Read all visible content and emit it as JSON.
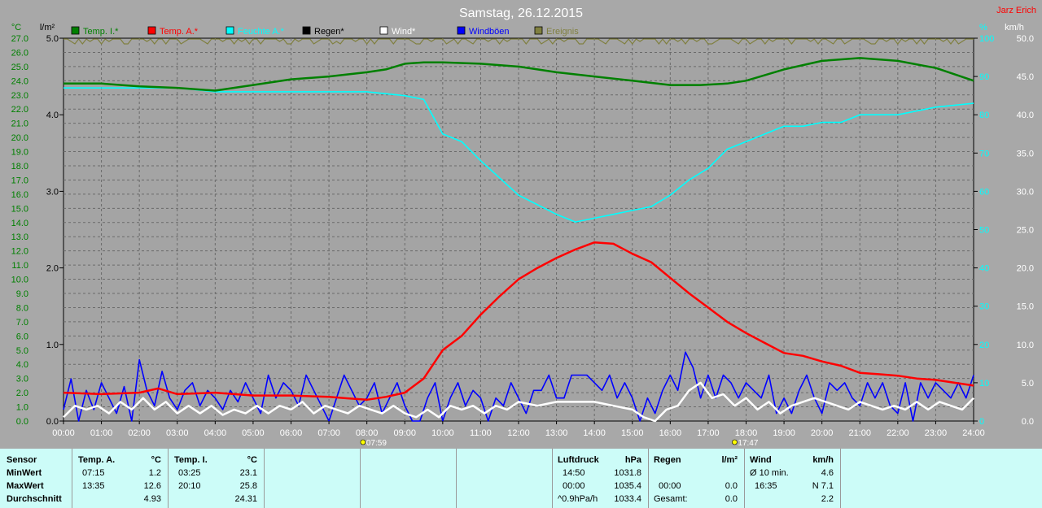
{
  "chart_data": {
    "type": "line",
    "title": "Samstag, 26.12.2015",
    "author": "Jarz Erich",
    "left_units": [
      "°C",
      "l/m²"
    ],
    "right_units": [
      "%",
      "km/h"
    ],
    "temp_ticks": [
      "27.0",
      "26.0",
      "25.0",
      "24.0",
      "23.0",
      "22.0",
      "21.0",
      "20.0",
      "19.0",
      "18.0",
      "17.0",
      "16.0",
      "15.0",
      "14.0",
      "13.0",
      "12.0",
      "11.0",
      "10.0",
      "9.0",
      "8.0",
      "7.0",
      "6.0",
      "5.0",
      "4.0",
      "3.0",
      "2.0",
      "1.0",
      "0.0"
    ],
    "rain_ticks": [
      "5.0",
      "4.0",
      "3.0",
      "2.0",
      "1.0",
      "0.0"
    ],
    "humidity_ticks": [
      "100",
      "90",
      "80",
      "70",
      "60",
      "50",
      "40",
      "30",
      "20",
      "10",
      "0"
    ],
    "wind_ticks": [
      "50.0",
      "45.0",
      "40.0",
      "35.0",
      "30.0",
      "25.0",
      "20.0",
      "15.0",
      "10.0",
      "5.0",
      "0.0"
    ],
    "x_ticks": [
      "00:00",
      "01:00",
      "02:00",
      "03:00",
      "04:00",
      "05:00",
      "06:00",
      "07:00",
      "08:00",
      "09:00",
      "10:00",
      "11:00",
      "12:00",
      "13:00",
      "14:00",
      "15:00",
      "16:00",
      "17:00",
      "18:00",
      "19:00",
      "20:00",
      "21:00",
      "22:00",
      "23:00",
      "24:00"
    ],
    "sunrise": "07:59",
    "sunset": "17:47",
    "legend": [
      {
        "name": "Temp. I.*",
        "color": "#008000"
      },
      {
        "name": "Temp. A.*",
        "color": "#ff0000"
      },
      {
        "name": "Feuchte A.*",
        "color": "#00ffff"
      },
      {
        "name": "Regen*",
        "color": "#000000"
      },
      {
        "name": "Wind*",
        "color": "#ffffff"
      },
      {
        "name": "Windböen",
        "color": "#0000ff"
      },
      {
        "name": "Ereignis",
        "color": "#808040"
      }
    ],
    "series": [
      {
        "name": "Temp. I.*",
        "color": "#008000",
        "axis": "temp",
        "x": [
          0,
          1,
          2,
          3,
          4,
          5,
          6,
          7,
          8,
          8.5,
          9,
          9.5,
          10,
          11,
          12,
          13,
          14,
          15,
          16,
          16.8,
          17.5,
          18,
          19,
          20,
          21,
          22,
          23,
          24
        ],
        "y": [
          23.8,
          23.8,
          23.6,
          23.5,
          23.3,
          23.7,
          24.1,
          24.3,
          24.6,
          24.8,
          25.2,
          25.3,
          25.3,
          25.2,
          25.0,
          24.6,
          24.3,
          24.0,
          23.7,
          23.7,
          23.8,
          24.0,
          24.8,
          25.4,
          25.6,
          25.4,
          24.9,
          24.0
        ]
      },
      {
        "name": "Temp. A.*",
        "color": "#ff0000",
        "axis": "temp",
        "x": [
          0,
          1,
          2,
          2.5,
          3,
          4,
          5,
          6,
          7,
          7.5,
          8,
          8.5,
          9,
          9.5,
          10,
          10.5,
          11,
          11.5,
          12,
          12.5,
          13,
          13.5,
          14,
          14.5,
          15,
          15.5,
          16,
          16.5,
          17,
          17.5,
          18,
          18.5,
          19,
          19.5,
          20,
          20.5,
          21,
          21.5,
          22,
          22.5,
          23,
          23.5,
          24
        ],
        "y": [
          2.0,
          1.9,
          2.0,
          2.3,
          1.9,
          2.0,
          1.8,
          1.8,
          1.7,
          1.6,
          1.5,
          1.7,
          2.0,
          3.0,
          5.0,
          6.0,
          7.5,
          8.8,
          10.0,
          10.8,
          11.5,
          12.1,
          12.6,
          12.5,
          11.8,
          11.2,
          10.1,
          9.0,
          8.0,
          7.0,
          6.2,
          5.5,
          4.8,
          4.6,
          4.2,
          3.9,
          3.4,
          3.3,
          3.2,
          3.0,
          2.9,
          2.7,
          2.5
        ]
      },
      {
        "name": "Feuchte A.*",
        "color": "#00ffff",
        "axis": "humidity",
        "x": [
          0,
          1,
          2,
          3,
          4,
          5,
          6,
          7,
          8,
          9,
          9.5,
          10,
          10.5,
          11,
          12,
          13,
          13.5,
          14,
          14.5,
          15,
          15.5,
          16,
          16.5,
          17,
          17.5,
          18,
          18.5,
          19,
          19.5,
          20,
          20.5,
          21,
          22,
          23,
          24
        ],
        "y": [
          87,
          87,
          87,
          87,
          86,
          86,
          86,
          86,
          86,
          85,
          84,
          75,
          73,
          68,
          59,
          54,
          52,
          53,
          54,
          55,
          56,
          59,
          63,
          66,
          71,
          73,
          75,
          77,
          77,
          78,
          78,
          80,
          80,
          82,
          83
        ]
      },
      {
        "name": "Windböen",
        "color": "#0000ff",
        "axis": "wind",
        "x": [
          0,
          0.2,
          0.4,
          0.6,
          0.8,
          1.0,
          1.2,
          1.4,
          1.6,
          1.8,
          2.0,
          2.2,
          2.4,
          2.6,
          2.8,
          3.0,
          3.2,
          3.4,
          3.6,
          3.8,
          4.0,
          4.2,
          4.4,
          4.6,
          4.8,
          5.0,
          5.2,
          5.4,
          5.6,
          5.8,
          6.0,
          6.2,
          6.4,
          6.6,
          6.8,
          7.0,
          7.2,
          7.4,
          7.6,
          7.8,
          8.0,
          8.2,
          8.4,
          8.6,
          8.8,
          9.0,
          9.2,
          9.4,
          9.6,
          9.8,
          10.0,
          10.2,
          10.4,
          10.6,
          10.8,
          11.0,
          11.2,
          11.4,
          11.6,
          11.8,
          12.0,
          12.2,
          12.4,
          12.6,
          12.8,
          13.0,
          13.2,
          13.4,
          13.6,
          13.8,
          14.0,
          14.2,
          14.4,
          14.6,
          14.8,
          15.0,
          15.2,
          15.4,
          15.6,
          15.8,
          16.0,
          16.2,
          16.4,
          16.6,
          16.8,
          17.0,
          17.2,
          17.4,
          17.6,
          17.8,
          18.0,
          18.2,
          18.4,
          18.6,
          18.8,
          19.0,
          19.2,
          19.4,
          19.6,
          19.8,
          20.0,
          20.2,
          20.4,
          20.6,
          20.8,
          21.0,
          21.2,
          21.4,
          21.6,
          21.8,
          22.0,
          22.2,
          22.4,
          22.6,
          22.8,
          23.0,
          23.2,
          23.4,
          23.6,
          23.8,
          24.0
        ],
        "y": [
          1.5,
          5.5,
          0,
          4,
          1.5,
          5,
          3,
          1,
          4.5,
          0,
          8,
          4,
          2,
          6.5,
          3,
          1.5,
          4,
          5,
          2,
          4,
          3,
          1.5,
          4,
          2.5,
          5,
          3,
          1,
          6,
          3,
          5,
          4,
          2,
          6,
          4,
          2,
          0,
          3,
          6,
          4,
          2,
          3,
          5,
          1,
          3,
          5,
          2,
          0,
          0,
          3,
          5,
          0,
          3,
          5,
          2,
          4,
          3,
          0,
          3,
          2,
          5,
          3,
          1,
          4,
          4,
          6,
          3,
          3,
          6,
          6,
          6,
          5,
          4,
          6,
          3,
          5,
          3,
          0,
          3,
          1,
          4,
          6,
          4,
          9,
          7,
          3,
          6,
          3,
          6,
          5,
          3,
          5,
          4,
          3,
          6,
          1,
          3,
          1,
          4,
          6,
          3,
          1,
          5,
          4,
          5,
          3,
          2,
          5,
          3,
          5,
          2,
          1,
          5,
          0,
          5,
          3,
          5,
          4,
          3,
          5,
          3,
          6
        ]
      },
      {
        "name": "Wind*",
        "color": "#ffffff",
        "axis": "wind",
        "x": [
          0,
          0.3,
          0.6,
          0.9,
          1.2,
          1.5,
          1.8,
          2.1,
          2.4,
          2.7,
          3.0,
          3.3,
          3.6,
          3.9,
          4.2,
          4.5,
          4.8,
          5.1,
          5.4,
          5.7,
          6.0,
          6.3,
          6.6,
          6.9,
          7.2,
          7.5,
          7.8,
          8.1,
          8.4,
          8.7,
          9.0,
          9.3,
          9.6,
          9.9,
          10.2,
          10.5,
          10.8,
          11.1,
          11.4,
          11.7,
          12.0,
          12.5,
          13.0,
          13.5,
          14.0,
          14.5,
          15.0,
          15.3,
          15.6,
          15.9,
          16.2,
          16.5,
          16.8,
          17.1,
          17.4,
          17.7,
          18.0,
          18.3,
          18.6,
          18.9,
          19.2,
          19.5,
          19.8,
          20.1,
          20.4,
          20.7,
          21.0,
          21.3,
          21.6,
          21.9,
          22.2,
          22.5,
          22.8,
          23.1,
          23.4,
          23.7,
          24.0
        ],
        "y": [
          0.5,
          2,
          1.5,
          2,
          1,
          2.5,
          1.5,
          3,
          1.5,
          2.5,
          1,
          2,
          1,
          2,
          0.8,
          1.5,
          1,
          2,
          1,
          2,
          1.5,
          2.5,
          1,
          2,
          1.5,
          1,
          2,
          1.5,
          1,
          2,
          1,
          0.5,
          1.5,
          0.5,
          2,
          1.5,
          2,
          1,
          2,
          1.5,
          2.5,
          2,
          2.5,
          2.5,
          2.5,
          2,
          1.5,
          0.5,
          0,
          1.5,
          2,
          4,
          5,
          3,
          3.5,
          2,
          3,
          1.5,
          2.5,
          1,
          2,
          2.5,
          3,
          2.5,
          2,
          1.5,
          2.5,
          2,
          1.5,
          2,
          1.5,
          2.5,
          1.5,
          2.5,
          2,
          1.5,
          3
        ]
      }
    ]
  },
  "table": {
    "sensor": {
      "header": "Sensor",
      "rows": [
        "MinWert",
        "MaxWert",
        "Durchschnitt"
      ]
    },
    "temp_a": {
      "header": "Temp. A.",
      "unit": "°C",
      "rows": [
        [
          "07:15",
          "1.2"
        ],
        [
          "13:35",
          "12.6"
        ],
        [
          "",
          "4.93"
        ]
      ]
    },
    "temp_i": {
      "header": "Temp. I.",
      "unit": "°C",
      "rows": [
        [
          "03:25",
          "23.1"
        ],
        [
          "20:10",
          "25.8"
        ],
        [
          "",
          "24.31"
        ]
      ]
    },
    "luftdruck": {
      "header": "Luftdruck",
      "unit": "hPa",
      "rows": [
        [
          "14:50",
          "1031.8"
        ],
        [
          "00:00",
          "1035.4"
        ],
        [
          "^0.9hPa/h",
          "1033.4"
        ]
      ]
    },
    "regen": {
      "header": "Regen",
      "unit": "l/m²",
      "rows": [
        [
          "",
          ""
        ],
        [
          "00:00",
          "0.0"
        ],
        [
          "Gesamt:",
          "0.0"
        ]
      ],
      "first_value": "0.0"
    },
    "wind": {
      "header": "Wind",
      "unit": "km/h",
      "rows": [
        [
          "Ø 10 min.",
          "4.6"
        ],
        [
          "16:35",
          "N 7.1"
        ],
        [
          "",
          "2.2"
        ]
      ]
    }
  }
}
